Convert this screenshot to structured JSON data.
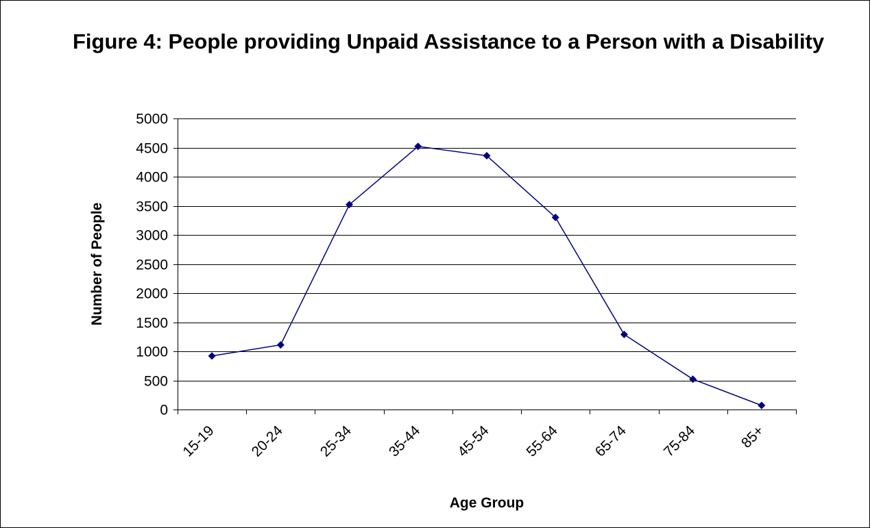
{
  "chart_data": {
    "type": "line",
    "title": "Figure 4: People providing Unpaid Assistance to a Person with a Disability",
    "xlabel": "Age Group",
    "ylabel": "Number of People",
    "categories": [
      "15-19",
      "20-24",
      "25-34",
      "35-44",
      "45-54",
      "55-64",
      "65-74",
      "75-84",
      "85+"
    ],
    "series": [
      {
        "values": [
          920,
          1110,
          3520,
          4520,
          4360,
          3300,
          1290,
          520,
          70
        ]
      }
    ],
    "ylim": [
      0,
      5000
    ],
    "yticks": [
      0,
      500,
      1000,
      1500,
      2000,
      2500,
      3000,
      3500,
      4000,
      4500,
      5000
    ],
    "grid": true,
    "legend": "none",
    "colors": {
      "line": "#000080",
      "marker": "#000080",
      "grid": "#000000"
    }
  }
}
